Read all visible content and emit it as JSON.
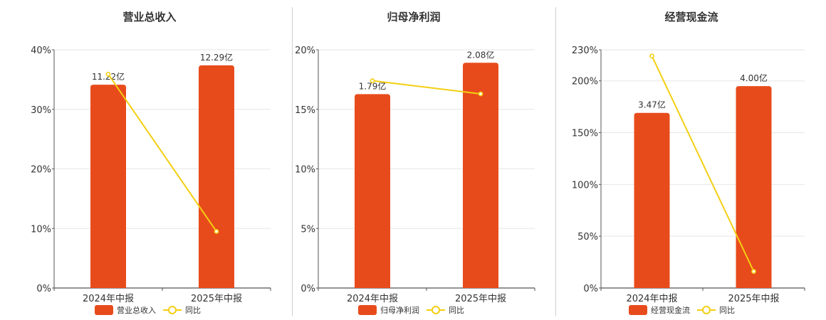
{
  "chart_data": [
    {
      "type": "bar",
      "title": "营业总收入",
      "categories": [
        "2024年中报",
        "2025年中报"
      ],
      "bar_series": {
        "name": "营业总收入",
        "values": [
          11.22,
          12.29
        ],
        "labels": [
          "11.22亿",
          "12.29亿"
        ]
      },
      "line_series": {
        "name": "同比",
        "values": [
          35.9,
          9.5
        ]
      },
      "yaxis": {
        "ticks": [
          "0%",
          "10%",
          "20%",
          "30%",
          "40%"
        ],
        "max": 40
      },
      "bar_value_max": 13.15,
      "colors": {
        "bar": "#E84B1B",
        "line": "#F3CF12",
        "axis": "#555555",
        "grid": "#e6e6e6"
      },
      "legend_placement": "bottom"
    },
    {
      "type": "bar",
      "title": "归母净利润",
      "categories": [
        "2024年中报",
        "2025年中报"
      ],
      "bar_series": {
        "name": "归母净利润",
        "values": [
          1.79,
          2.08
        ],
        "labels": [
          "1.79亿",
          "2.08亿"
        ]
      },
      "line_series": {
        "name": "同比",
        "values": [
          17.4,
          16.3
        ]
      },
      "yaxis": {
        "ticks": [
          "0%",
          "5%",
          "10%",
          "15%",
          "20%"
        ],
        "max": 20
      },
      "bar_value_max": 2.2,
      "colors": {
        "bar": "#E84B1B",
        "line": "#F3CF12",
        "axis": "#555555",
        "grid": "#e6e6e6"
      },
      "legend_placement": "bottom"
    },
    {
      "type": "bar",
      "title": "经营现金流",
      "categories": [
        "2024年中报",
        "2025年中报"
      ],
      "bar_series": {
        "name": "经营现金流",
        "values": [
          3.47,
          4.0
        ],
        "labels": [
          "3.47亿",
          "4.00亿"
        ]
      },
      "line_series": {
        "name": "同比",
        "values": [
          224,
          16
        ]
      },
      "yaxis": {
        "ticks": [
          "0%",
          "50%",
          "100%",
          "150%",
          "200%",
          "230%"
        ],
        "max": 230
      },
      "bar_value_max": 4.72,
      "colors": {
        "bar": "#E84B1B",
        "line": "#F3CF12",
        "axis": "#555555",
        "grid": "#e6e6e6"
      },
      "legend_placement": "bottom"
    }
  ]
}
